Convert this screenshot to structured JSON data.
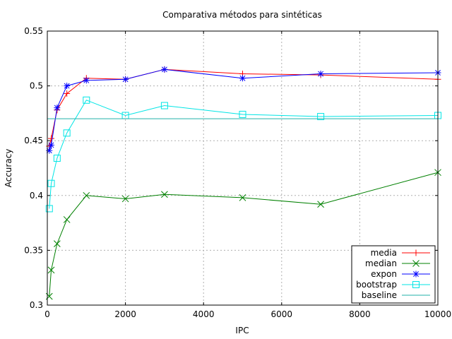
{
  "chart_data": {
    "type": "line",
    "title": "Comparativa métodos para sintéticas",
    "xlabel": "IPC",
    "ylabel": "Accuracy",
    "xlim": [
      0,
      10000
    ],
    "ylim": [
      0.3,
      0.55
    ],
    "xticks": [
      0,
      2000,
      4000,
      6000,
      8000,
      10000
    ],
    "xtick_labels": [
      "0",
      "2000",
      "4000",
      "6000",
      "8000",
      "10000"
    ],
    "yticks": [
      0.3,
      0.35,
      0.4,
      0.45,
      0.5,
      0.55
    ],
    "ytick_labels": [
      "0.3",
      "0.35",
      "0.4",
      "0.45",
      "0.5",
      "0.55"
    ],
    "grid": true,
    "legend_position": "bottom-right",
    "series": [
      {
        "name": "media",
        "color": "#ff0000",
        "marker": "plus",
        "x": [
          50,
          100,
          250,
          500,
          1000,
          2000,
          3000,
          5000,
          7000,
          10000
        ],
        "y": [
          0.445,
          0.452,
          0.478,
          0.493,
          0.507,
          0.506,
          0.515,
          0.511,
          0.51,
          0.506
        ]
      },
      {
        "name": "median",
        "color": "#008000",
        "marker": "x",
        "x": [
          50,
          100,
          250,
          500,
          1000,
          2000,
          3000,
          5000,
          7000,
          10000
        ],
        "y": [
          0.308,
          0.332,
          0.356,
          0.378,
          0.4,
          0.397,
          0.401,
          0.398,
          0.392,
          0.421
        ]
      },
      {
        "name": "expon",
        "color": "#0000ff",
        "marker": "star",
        "x": [
          50,
          100,
          250,
          500,
          1000,
          2000,
          3000,
          5000,
          7000,
          10000
        ],
        "y": [
          0.441,
          0.446,
          0.48,
          0.5,
          0.505,
          0.506,
          0.515,
          0.507,
          0.511,
          0.512
        ]
      },
      {
        "name": "bootstrap",
        "color": "#00e5e5",
        "marker": "square",
        "x": [
          50,
          100,
          250,
          500,
          1000,
          2000,
          3000,
          5000,
          7000,
          10000
        ],
        "y": [
          0.388,
          0.411,
          0.434,
          0.457,
          0.487,
          0.473,
          0.482,
          0.474,
          0.472,
          0.473
        ]
      },
      {
        "name": "baseline",
        "color": "#20b2aa",
        "marker": "none",
        "x": [
          0,
          10000
        ],
        "y": [
          0.47,
          0.47
        ]
      }
    ]
  }
}
